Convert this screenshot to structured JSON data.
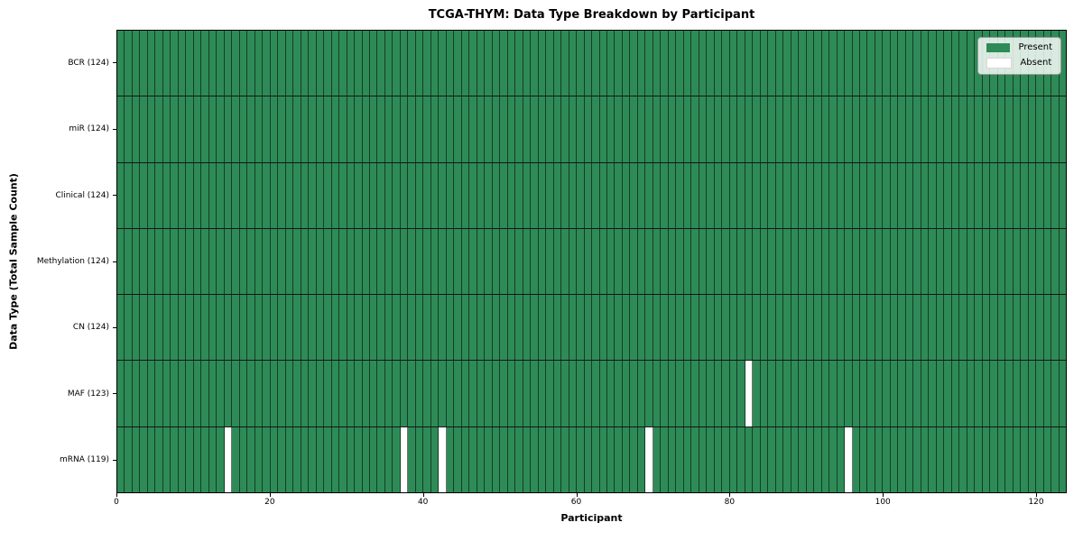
{
  "chart_data": {
    "type": "heatmap",
    "title": "TCGA-THYM: Data Type Breakdown by Participant",
    "xlabel": "Participant",
    "ylabel": "Data Type (Total Sample Count)",
    "n_participants": 124,
    "x_ticks": [
      0,
      20,
      40,
      60,
      80,
      100,
      120
    ],
    "xlim": [
      0,
      124
    ],
    "grid": false,
    "legend_position": "upper right",
    "rows": [
      {
        "label": "BCR (124)",
        "name": "BCR",
        "total": 124,
        "absent_participants": []
      },
      {
        "label": "miR (124)",
        "name": "miR",
        "total": 124,
        "absent_participants": []
      },
      {
        "label": "Clinical (124)",
        "name": "Clinical",
        "total": 124,
        "absent_participants": []
      },
      {
        "label": "Methylation (124)",
        "name": "Methylation",
        "total": 124,
        "absent_participants": []
      },
      {
        "label": "CN (124)",
        "name": "CN",
        "total": 124,
        "absent_participants": []
      },
      {
        "label": "MAF (123)",
        "name": "MAF",
        "total": 123,
        "absent_participants": [
          82
        ]
      },
      {
        "label": "mRNA (119)",
        "name": "mRNA",
        "total": 119,
        "absent_participants": [
          14,
          37,
          42,
          69,
          95
        ]
      }
    ],
    "legend": [
      {
        "label": "Present",
        "color": "#2e8b57"
      },
      {
        "label": "Absent",
        "color": "#ffffff"
      }
    ],
    "colors": {
      "present": "#2e8b57",
      "absent": "#ffffff",
      "cell_edge": "rgba(0,0,0,0.55)",
      "row_separator": "#161616",
      "plot_border": "#000000",
      "background": "#ffffff"
    }
  }
}
